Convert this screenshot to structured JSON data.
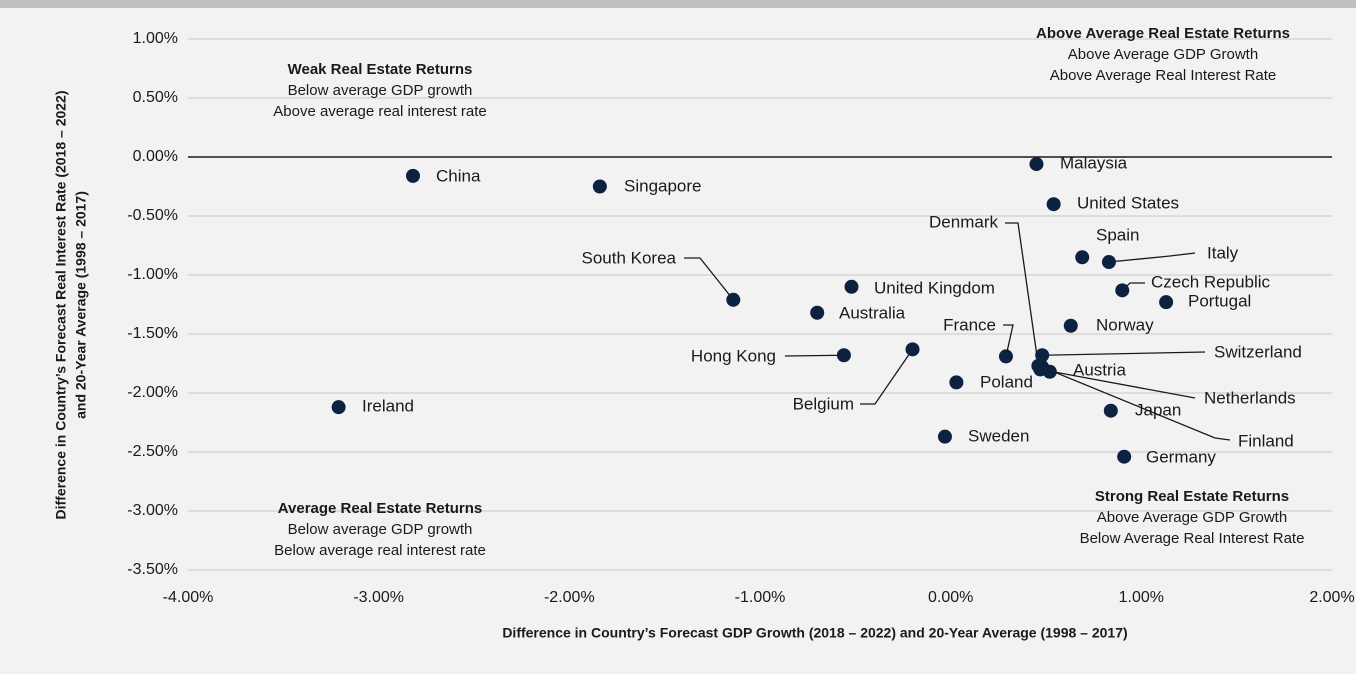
{
  "chart_data": {
    "type": "scatter",
    "xlabel": "Difference in Country’s Forecast GDP Growth (2018 – 2022) and 20-Year Average (1998 – 2017)",
    "ylabel": [
      "Difference in Country’s Forecast Real Interest Rate (2018 – 2022)",
      "and 20-Year Average (1998 – 2017)"
    ],
    "color": "#0d2240",
    "grid": true,
    "xlim": [
      -4,
      2
    ],
    "ylim": [
      -3.5,
      1
    ],
    "xticks": [
      {
        "value": -4,
        "label": "-4.00%"
      },
      {
        "value": -3,
        "label": "-3.00%"
      },
      {
        "value": -2,
        "label": "-2.00%"
      },
      {
        "value": -1,
        "label": "-1.00%"
      },
      {
        "value": 0,
        "label": "0.00%"
      },
      {
        "value": 1,
        "label": "1.00%"
      },
      {
        "value": 2,
        "label": "2.00%"
      }
    ],
    "yticks": [
      {
        "value": 1,
        "label": "1.00%"
      },
      {
        "value": 0.5,
        "label": "0.50%"
      },
      {
        "value": 0,
        "label": "0.00%"
      },
      {
        "value": -0.5,
        "label": "-0.50%"
      },
      {
        "value": -1,
        "label": "-1.00%"
      },
      {
        "value": -1.5,
        "label": "-1.50%"
      },
      {
        "value": -2,
        "label": "-2.00%"
      },
      {
        "value": -2.5,
        "label": "-2.50%"
      },
      {
        "value": -3,
        "label": "-3.00%"
      },
      {
        "value": -3.5,
        "label": "-3.50%"
      }
    ],
    "labels": [
      "China",
      "Singapore",
      "Malaysia",
      "United States",
      "Spain",
      "Italy",
      "Czech Republic",
      "Portugal",
      "Norway",
      "South Korea",
      "United Kingdom",
      "Australia",
      "Hong Kong",
      "Belgium",
      "France",
      "Switzerland",
      "Denmark",
      "Netherlands",
      "Austria",
      "Finland",
      "Poland",
      "Japan",
      "Sweden",
      "Germany",
      "Ireland"
    ],
    "x": [
      -2.82,
      -1.84,
      0.45,
      0.54,
      0.69,
      0.83,
      0.9,
      1.13,
      0.63,
      -1.14,
      -0.52,
      -0.7,
      -0.56,
      -0.2,
      0.29,
      0.48,
      0.46,
      0.47,
      0.52,
      0.48,
      0.03,
      0.84,
      -0.03,
      0.91,
      -3.21
    ],
    "values": [
      -0.16,
      -0.25,
      -0.06,
      -0.4,
      -0.85,
      -0.89,
      -1.13,
      -1.23,
      -1.43,
      -1.21,
      -1.1,
      -1.32,
      -1.68,
      -1.63,
      -1.69,
      -1.68,
      -1.77,
      -1.8,
      -1.82,
      -1.78,
      -1.91,
      -2.15,
      -2.37,
      -2.54,
      -2.12
    ],
    "annotations": [
      {
        "title": "Weak Real Estate Returns",
        "lines": [
          "Below average GDP growth",
          "Above average real interest rate"
        ]
      },
      {
        "title": "Above Average Real Estate Returns",
        "lines": [
          "Above Average GDP Growth",
          "Above Average Real Interest Rate"
        ]
      },
      {
        "title": "Average Real Estate Returns",
        "lines": [
          "Below average GDP growth",
          "Below average real interest rate"
        ]
      },
      {
        "title": "Strong Real Estate Returns",
        "lines": [
          "Above Average GDP Growth",
          "Below Average Real Interest Rate"
        ]
      }
    ]
  }
}
